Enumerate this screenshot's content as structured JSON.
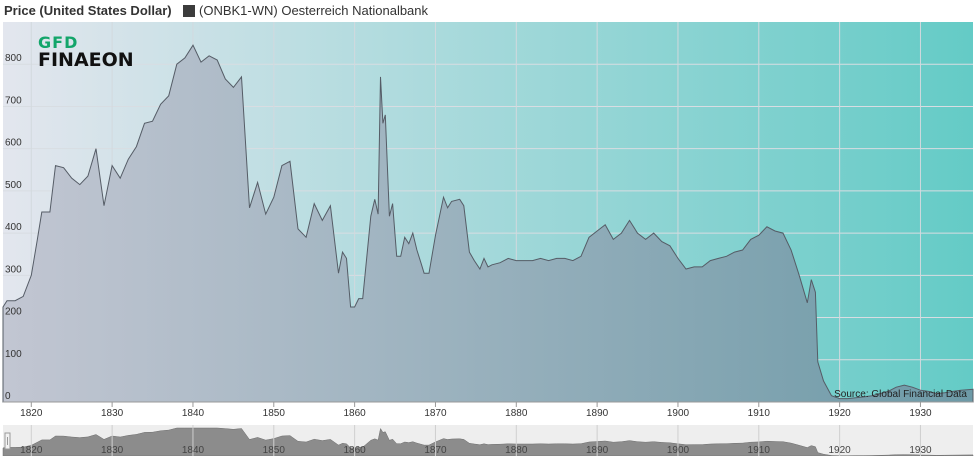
{
  "header": {
    "y_title": "Price (United States Dollar)",
    "legend_label": "(ONBK1-WN) Oesterreich Nationalbank"
  },
  "logo": {
    "top": "GFD",
    "bottom": "FINAEON"
  },
  "source": "Source: Global Financial Data",
  "colors": {
    "plot_left": "#e3e6ee",
    "plot_right": "#64cbc6",
    "area_left": "#c2c6d2",
    "area_right": "#6d9aa7",
    "line": "#555c66"
  },
  "chart_data": {
    "type": "area",
    "title": "",
    "ylabel": "Price (United States Dollar)",
    "xlabel": "",
    "xlim": [
      1816.5,
      1936.5
    ],
    "ylim": [
      0,
      900
    ],
    "yticks": [
      0,
      100,
      200,
      300,
      400,
      500,
      600,
      700,
      800
    ],
    "xticks": [
      1820,
      1830,
      1840,
      1850,
      1860,
      1870,
      1880,
      1890,
      1900,
      1910,
      1920,
      1930
    ],
    "grid": true,
    "legend": "top-left",
    "series": [
      {
        "name": "(ONBK1-WN) Oesterreich Nationalbank",
        "points": [
          [
            1816.5,
            225
          ],
          [
            1817,
            240
          ],
          [
            1818,
            240
          ],
          [
            1819,
            250
          ],
          [
            1820,
            300
          ],
          [
            1820.7,
            380
          ],
          [
            1821.3,
            450
          ],
          [
            1822.3,
            450
          ],
          [
            1823,
            560
          ],
          [
            1824,
            555
          ],
          [
            1825,
            530
          ],
          [
            1826,
            515
          ],
          [
            1827,
            535
          ],
          [
            1828,
            600
          ],
          [
            1829,
            465
          ],
          [
            1830,
            560
          ],
          [
            1831,
            530
          ],
          [
            1832,
            575
          ],
          [
            1833,
            605
          ],
          [
            1834,
            660
          ],
          [
            1835,
            665
          ],
          [
            1836,
            705
          ],
          [
            1837,
            725
          ],
          [
            1838,
            800
          ],
          [
            1839,
            815
          ],
          [
            1840,
            845
          ],
          [
            1841,
            805
          ],
          [
            1842,
            820
          ],
          [
            1843,
            810
          ],
          [
            1844,
            765
          ],
          [
            1845,
            745
          ],
          [
            1846,
            770
          ],
          [
            1847,
            460
          ],
          [
            1848,
            520
          ],
          [
            1849,
            445
          ],
          [
            1850,
            485
          ],
          [
            1851,
            560
          ],
          [
            1852,
            570
          ],
          [
            1853,
            410
          ],
          [
            1854,
            390
          ],
          [
            1855,
            470
          ],
          [
            1856,
            430
          ],
          [
            1857,
            465
          ],
          [
            1858,
            305
          ],
          [
            1858.5,
            355
          ],
          [
            1859,
            340
          ],
          [
            1859.5,
            225
          ],
          [
            1860,
            225
          ],
          [
            1860.5,
            245
          ],
          [
            1861,
            245
          ],
          [
            1862,
            440
          ],
          [
            1862.5,
            480
          ],
          [
            1862.9,
            445
          ],
          [
            1863.2,
            770
          ],
          [
            1863.5,
            660
          ],
          [
            1863.8,
            680
          ],
          [
            1864.3,
            440
          ],
          [
            1864.7,
            470
          ],
          [
            1865.2,
            345
          ],
          [
            1865.7,
            345
          ],
          [
            1866.2,
            390
          ],
          [
            1866.7,
            375
          ],
          [
            1867.2,
            400
          ],
          [
            1867.7,
            360
          ],
          [
            1868.2,
            330
          ],
          [
            1868.6,
            305
          ],
          [
            1869.2,
            305
          ],
          [
            1870,
            395
          ],
          [
            1871,
            485
          ],
          [
            1871.5,
            460
          ],
          [
            1872,
            475
          ],
          [
            1873,
            480
          ],
          [
            1873.5,
            465
          ],
          [
            1874.2,
            355
          ],
          [
            1874.8,
            335
          ],
          [
            1875.5,
            315
          ],
          [
            1876,
            340
          ],
          [
            1876.5,
            320
          ],
          [
            1877,
            325
          ],
          [
            1878,
            330
          ],
          [
            1879,
            340
          ],
          [
            1880,
            335
          ],
          [
            1881,
            335
          ],
          [
            1882,
            335
          ],
          [
            1883,
            340
          ],
          [
            1884,
            335
          ],
          [
            1885,
            340
          ],
          [
            1886,
            340
          ],
          [
            1887,
            335
          ],
          [
            1888,
            345
          ],
          [
            1889,
            390
          ],
          [
            1890,
            405
          ],
          [
            1891,
            420
          ],
          [
            1892,
            385
          ],
          [
            1893,
            400
          ],
          [
            1894,
            430
          ],
          [
            1895,
            400
          ],
          [
            1896,
            385
          ],
          [
            1897,
            400
          ],
          [
            1898,
            380
          ],
          [
            1899,
            370
          ],
          [
            1900,
            340
          ],
          [
            1901,
            315
          ],
          [
            1902,
            320
          ],
          [
            1903,
            320
          ],
          [
            1904,
            335
          ],
          [
            1905,
            340
          ],
          [
            1906,
            345
          ],
          [
            1907,
            355
          ],
          [
            1908,
            360
          ],
          [
            1909,
            385
          ],
          [
            1910,
            395
          ],
          [
            1911,
            415
          ],
          [
            1912,
            405
          ],
          [
            1913,
            400
          ],
          [
            1914,
            360
          ],
          [
            1915,
            300
          ],
          [
            1916,
            235
          ],
          [
            1916.5,
            290
          ],
          [
            1917,
            260
          ],
          [
            1917.3,
            95
          ],
          [
            1918,
            50
          ],
          [
            1919,
            15
          ],
          [
            1920,
            8
          ],
          [
            1921,
            8
          ],
          [
            1922,
            10
          ],
          [
            1923,
            12
          ],
          [
            1924,
            15
          ],
          [
            1925,
            20
          ],
          [
            1926,
            25
          ],
          [
            1927,
            35
          ],
          [
            1928,
            40
          ],
          [
            1929,
            35
          ],
          [
            1930,
            28
          ],
          [
            1931,
            25
          ],
          [
            1932,
            20
          ],
          [
            1933,
            22
          ],
          [
            1934,
            25
          ],
          [
            1935,
            28
          ],
          [
            1936.5,
            30
          ]
        ]
      }
    ]
  }
}
